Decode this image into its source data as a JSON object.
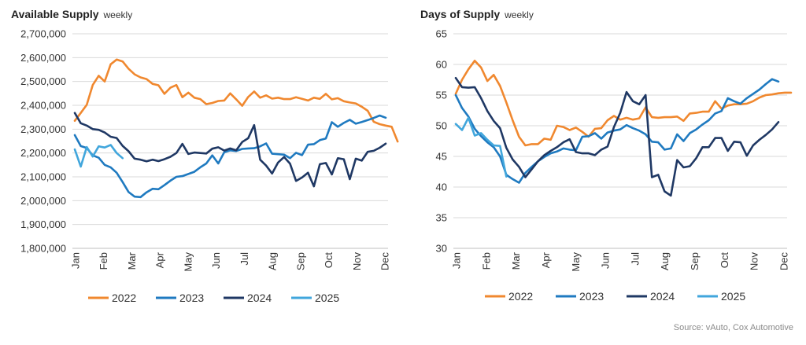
{
  "source": "Source: vAuto, Cox Automotive",
  "chart_data": [
    {
      "type": "line",
      "title": "Available Supply",
      "subtitle": "weekly",
      "xlabel": "",
      "ylabel": "",
      "ylim": [
        1800000,
        2700000
      ],
      "yticks": [
        1800000,
        1900000,
        2000000,
        2100000,
        2200000,
        2300000,
        2400000,
        2500000,
        2600000,
        2700000
      ],
      "yticklabels": [
        "1,800,000",
        "1,900,000",
        "2,000,000",
        "2,100,000",
        "2,200,000",
        "2,300,000",
        "2,400,000",
        "2,500,000",
        "2,600,000",
        "2,700,000"
      ],
      "xticks": [
        "Jan",
        "Feb",
        "Mar",
        "Apr",
        "May",
        "Jun",
        "Jul",
        "Aug",
        "Sep",
        "Oct",
        "Nov",
        "Dec"
      ],
      "grid": "horizontal",
      "legend": "bottom",
      "series": [
        {
          "name": "2022",
          "color": "#f0882f",
          "values": [
            2335000,
            2368000,
            2402000,
            2485000,
            2524000,
            2500000,
            2572000,
            2592000,
            2584000,
            2553000,
            2530000,
            2517000,
            2510000,
            2490000,
            2484000,
            2448000,
            2474000,
            2485000,
            2434000,
            2453000,
            2432000,
            2426000,
            2405000,
            2410000,
            2418000,
            2420000,
            2450000,
            2425000,
            2398000,
            2435000,
            2458000,
            2432000,
            2442000,
            2428000,
            2432000,
            2426000,
            2426000,
            2434000,
            2427000,
            2420000,
            2432000,
            2427000,
            2448000,
            2425000,
            2430000,
            2417000,
            2412000,
            2408000,
            2394000,
            2377000,
            2331000,
            2321000,
            2315000,
            2310000,
            2248000
          ]
        },
        {
          "name": "2023",
          "color": "#1f7ac0",
          "values": [
            2275000,
            2229000,
            2221000,
            2190000,
            2180000,
            2150000,
            2140000,
            2117000,
            2078000,
            2036000,
            2017000,
            2015000,
            2035000,
            2050000,
            2048000,
            2065000,
            2084000,
            2100000,
            2103000,
            2112000,
            2121000,
            2140000,
            2156000,
            2190000,
            2156000,
            2203000,
            2211000,
            2208000,
            2217000,
            2219000,
            2220000,
            2228000,
            2240000,
            2197000,
            2195000,
            2193000,
            2178000,
            2201000,
            2191000,
            2235000,
            2237000,
            2254000,
            2261000,
            2329000,
            2310000,
            2326000,
            2339000,
            2323000,
            2330000,
            2338000,
            2347000,
            2357000,
            2348000
          ]
        },
        {
          "name": "2024",
          "color": "#1f3864",
          "values": [
            2368000,
            2325000,
            2315000,
            2300000,
            2297000,
            2286000,
            2268000,
            2263000,
            2230000,
            2207000,
            2176000,
            2172000,
            2165000,
            2172000,
            2166000,
            2174000,
            2184000,
            2200000,
            2238000,
            2196000,
            2202000,
            2200000,
            2198000,
            2218000,
            2224000,
            2210000,
            2219000,
            2211000,
            2246000,
            2262000,
            2317000,
            2172000,
            2147000,
            2114000,
            2160000,
            2183000,
            2155000,
            2083000,
            2097000,
            2117000,
            2060000,
            2153000,
            2158000,
            2110000,
            2178000,
            2174000,
            2090000,
            2176000,
            2168000,
            2205000,
            2209000,
            2222000,
            2239000
          ]
        },
        {
          "name": "2025",
          "color": "#41a6dc",
          "values": [
            2215000,
            2143000,
            2225000,
            2185000,
            2228000,
            2223000,
            2234000,
            2200000,
            2178000
          ]
        }
      ]
    },
    {
      "type": "line",
      "title": "Days of Supply",
      "subtitle": "weekly",
      "xlabel": "",
      "ylabel": "",
      "ylim": [
        30,
        65
      ],
      "yticks": [
        30,
        35,
        40,
        45,
        50,
        55,
        60,
        65
      ],
      "yticklabels": [
        "30",
        "35",
        "40",
        "45",
        "50",
        "55",
        "60",
        "65"
      ],
      "xticks": [
        "Jan",
        "Feb",
        "Mar",
        "Apr",
        "May",
        "Jun",
        "Jul",
        "Aug",
        "Sep",
        "Oct",
        "Nov",
        "Dec"
      ],
      "grid": "horizontal",
      "legend": "bottom",
      "series": [
        {
          "name": "2022",
          "color": "#f0882f",
          "values": [
            55.2,
            57.5,
            59.2,
            60.6,
            59.5,
            57.3,
            58.3,
            56.5,
            53.8,
            50.9,
            48.2,
            46.8,
            47.0,
            47.0,
            47.9,
            47.7,
            50.0,
            49.8,
            49.3,
            49.7,
            49.0,
            48.2,
            49.5,
            49.6,
            50.9,
            51.6,
            51.0,
            51.3,
            51.0,
            51.2,
            53.0,
            51.4,
            51.3,
            51.4,
            51.4,
            51.5,
            50.8,
            52.0,
            52.1,
            52.3,
            52.3,
            54.0,
            52.8,
            53.3,
            53.5,
            53.5,
            53.6,
            54.0,
            54.6,
            55.0,
            55.1,
            55.3,
            55.4,
            55.4
          ]
        },
        {
          "name": "2023",
          "color": "#1f7ac0",
          "values": [
            55.0,
            52.9,
            51.5,
            49.5,
            48.3,
            47.3,
            46.5,
            45.0,
            42.0,
            41.3,
            40.7,
            42.3,
            43.3,
            44.2,
            44.9,
            45.5,
            45.8,
            46.3,
            46.1,
            46.0,
            48.2,
            48.3,
            48.8,
            47.9,
            48.9,
            49.2,
            49.4,
            50.1,
            49.6,
            49.2,
            48.6,
            47.4,
            47.3,
            46.1,
            46.3,
            48.6,
            47.5,
            48.8,
            49.4,
            50.2,
            50.9,
            52.0,
            52.4,
            54.5,
            54.0,
            53.6,
            54.5,
            55.2,
            55.9,
            56.8,
            57.6,
            57.2
          ]
        },
        {
          "name": "2024",
          "color": "#1f3864",
          "values": [
            57.8,
            56.3,
            56.2,
            56.3,
            54.5,
            52.4,
            50.8,
            49.6,
            46.4,
            44.5,
            43.3,
            41.6,
            42.9,
            44.2,
            45.2,
            45.9,
            46.5,
            47.3,
            47.8,
            45.7,
            45.5,
            45.5,
            45.2,
            46.1,
            46.6,
            49.8,
            52.1,
            55.5,
            54.0,
            53.5,
            55.0,
            41.6,
            42.0,
            39.3,
            38.6,
            44.4,
            43.2,
            43.4,
            44.7,
            46.5,
            46.5,
            48.0,
            48.0,
            45.9,
            47.4,
            47.3,
            45.1,
            46.8,
            47.7,
            48.5,
            49.4,
            50.6
          ]
        },
        {
          "name": "2025",
          "color": "#41a6dc",
          "values": [
            50.3,
            49.3,
            51.3,
            48.4,
            48.8,
            47.7,
            46.8,
            46.7,
            41.7
          ]
        }
      ]
    }
  ]
}
